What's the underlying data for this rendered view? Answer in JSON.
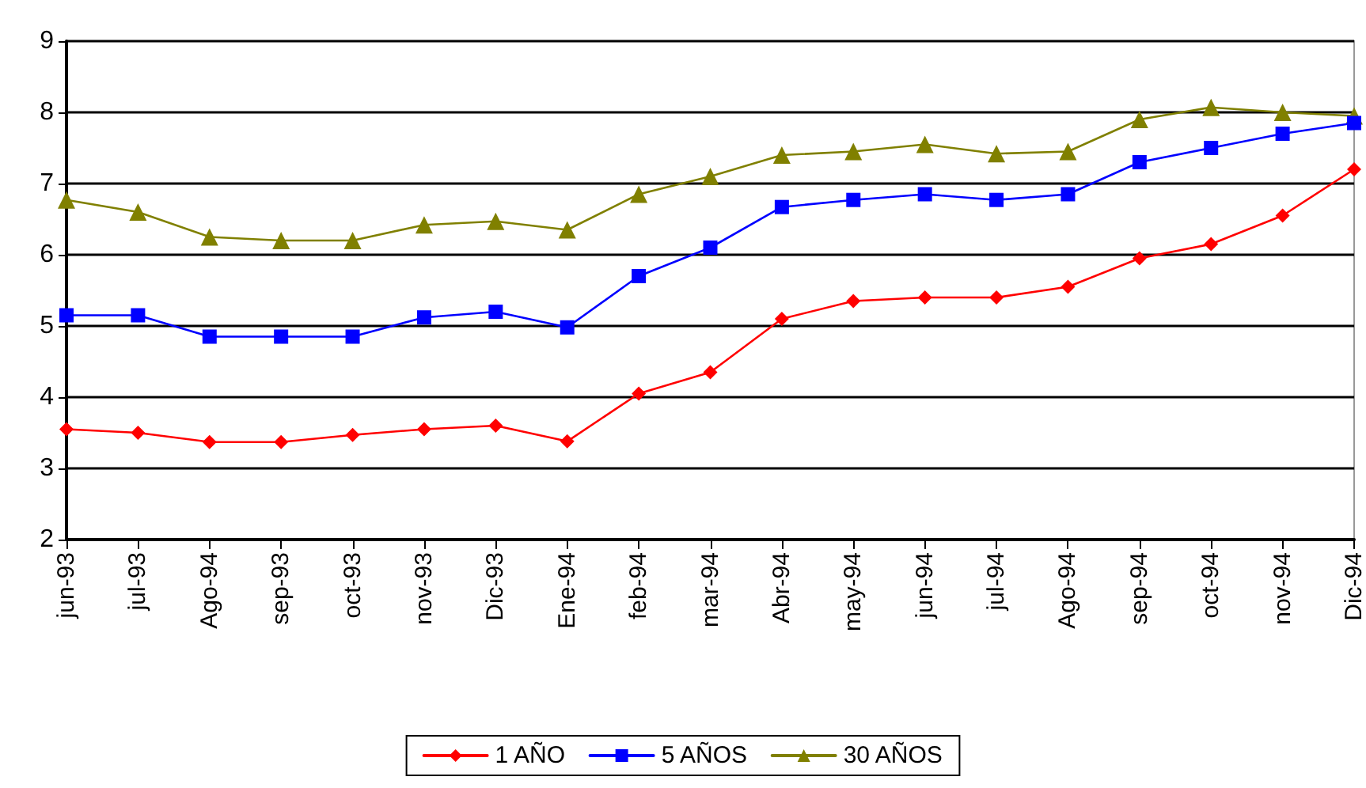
{
  "chart_data": {
    "type": "line",
    "categories": [
      "jun-93",
      "jul-93",
      "Ago-94",
      "sep-93",
      "oct-93",
      "nov-93",
      "Dic-93",
      "Ene-94",
      "feb-94",
      "mar-94",
      "Abr-94",
      "may-94",
      "jun-94",
      "jul-94",
      "Ago-94",
      "sep-94",
      "oct-94",
      "nov-94",
      "Dic-94"
    ],
    "series": [
      {
        "name": "1 AÑO",
        "color": "#ff0000",
        "marker": "diamond",
        "values": [
          3.55,
          3.5,
          3.37,
          3.37,
          3.47,
          3.55,
          3.6,
          3.38,
          4.05,
          4.35,
          5.1,
          5.35,
          5.4,
          5.4,
          5.55,
          5.95,
          6.15,
          6.55,
          7.2
        ]
      },
      {
        "name": "5 AÑOS",
        "color": "#0000ff",
        "marker": "square",
        "values": [
          5.15,
          5.15,
          4.85,
          4.85,
          4.85,
          5.12,
          5.2,
          4.98,
          5.7,
          6.1,
          6.67,
          6.77,
          6.85,
          6.77,
          6.85,
          7.3,
          7.5,
          7.7,
          7.85
        ]
      },
      {
        "name": "30 AÑOS",
        "color": "#808000",
        "marker": "triangle",
        "values": [
          6.77,
          6.6,
          6.25,
          6.2,
          6.2,
          6.42,
          6.47,
          6.35,
          6.85,
          7.1,
          7.4,
          7.45,
          7.55,
          7.42,
          7.45,
          7.9,
          8.07,
          8.0,
          7.95
        ]
      }
    ],
    "ylim": [
      2,
      9
    ],
    "yticks": [
      2,
      3,
      4,
      5,
      6,
      7,
      8,
      9
    ],
    "grid": "y",
    "legend": "bottom"
  }
}
